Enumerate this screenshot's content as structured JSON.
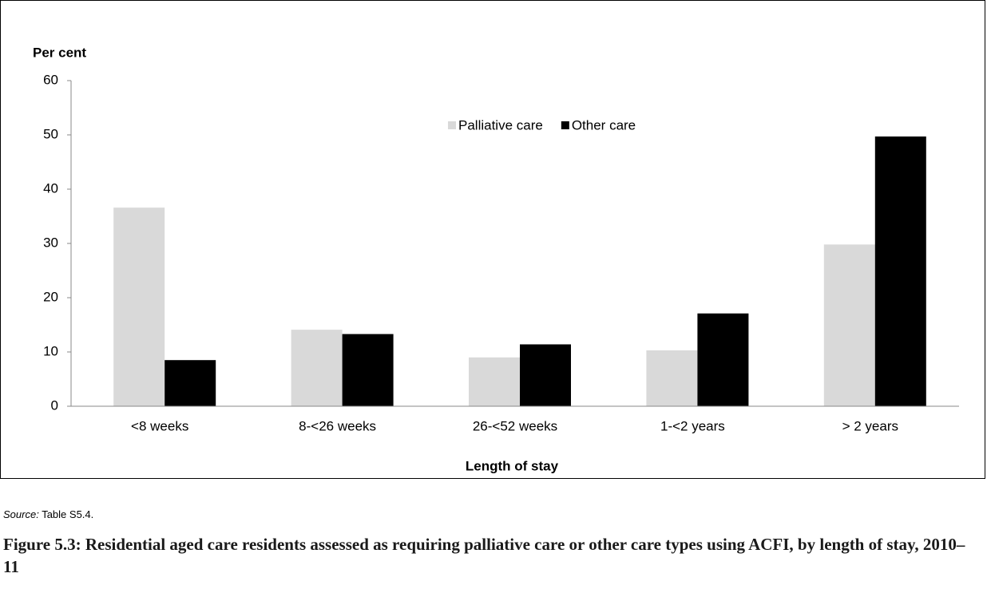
{
  "chart_data": {
    "type": "bar",
    "y_axis_label": "Per cent",
    "x_axis_label": "Length of stay",
    "categories": [
      "<8 weeks",
      "8-<26 weeks",
      "26-<52 weeks",
      "1-<2 years",
      "> 2 years"
    ],
    "series": [
      {
        "name": "Palliative care",
        "color": "#d9d9d9",
        "values": [
          36.6,
          14.1,
          9.0,
          10.3,
          29.8
        ]
      },
      {
        "name": "Other care",
        "color": "#000000",
        "values": [
          8.5,
          13.3,
          11.4,
          17.1,
          49.7
        ]
      }
    ],
    "ylim": [
      0,
      60
    ],
    "yticks": [
      0,
      10,
      20,
      30,
      40,
      50,
      60
    ],
    "source": {
      "label": "Source:",
      "text": "Table S5.4."
    },
    "caption": "Figure 5.3: Residential aged care residents assessed as requiring palliative care or other care types using ACFI, by length of stay, 2010–11"
  }
}
